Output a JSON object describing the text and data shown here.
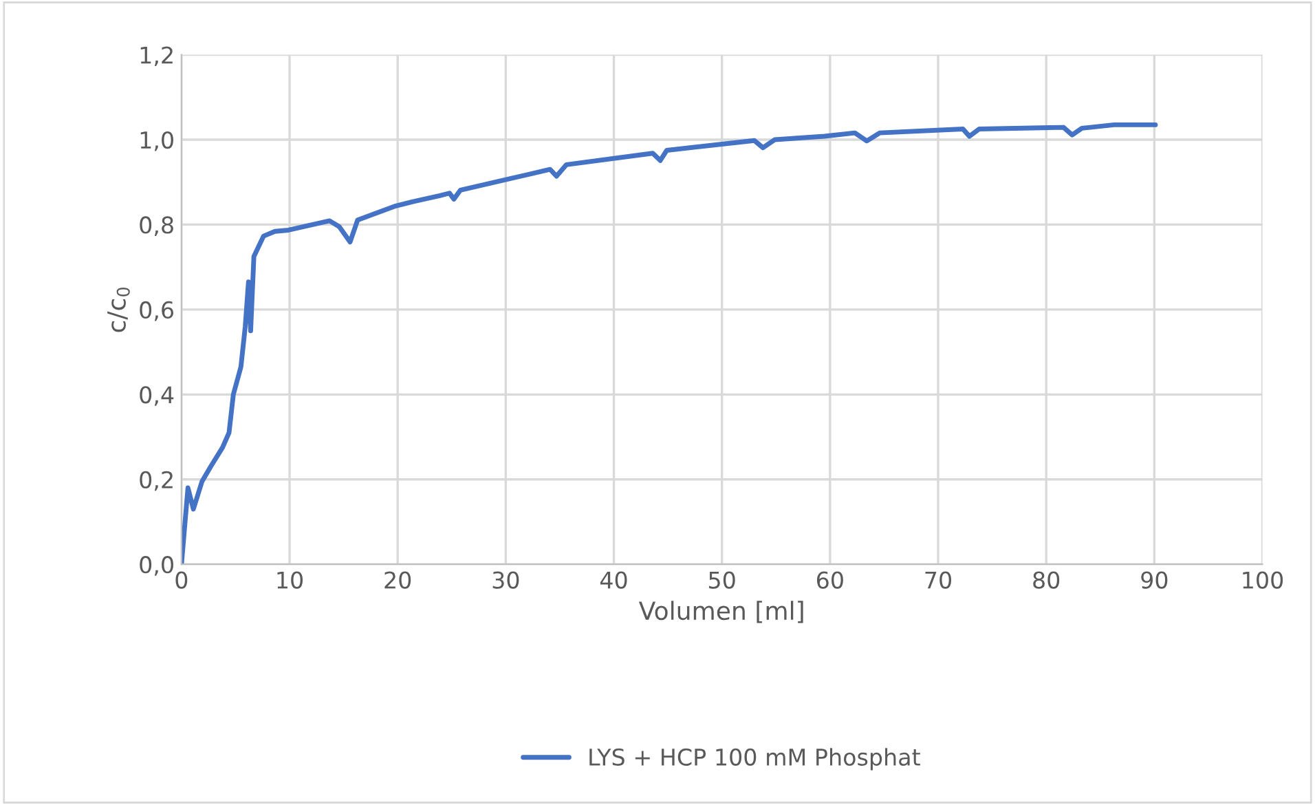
{
  "chart_data": {
    "type": "line",
    "xlabel": "Volumen [ml]",
    "ylabel": "c/c$_{0}$",
    "series": [
      {
        "name": "LYS + HCP 100 mM Phosphat",
        "color": "#4472c4",
        "x": [
          0,
          0.6,
          1.1,
          1.9,
          2.7,
          3.8,
          4.4,
          4.8,
          5.5,
          5.9,
          6.2,
          6.4,
          6.7,
          7.6,
          8.65,
          9.9,
          13.7,
          14.6,
          15.6,
          16.3,
          19.7,
          21.4,
          23.9,
          24.8,
          25.2,
          25.8,
          34.1,
          34.7,
          35.6,
          43.6,
          44.3,
          44.9,
          53.0,
          53.8,
          54.9,
          59.5,
          62.3,
          63.4,
          64.6,
          72.3,
          72.9,
          73.8,
          81.6,
          82.4,
          83.3,
          86.3,
          90.1
        ],
        "values": [
          0,
          0.18,
          0.13,
          0.195,
          0.23,
          0.275,
          0.31,
          0.4,
          0.465,
          0.56,
          0.665,
          0.55,
          0.725,
          0.773,
          0.784,
          0.787,
          0.809,
          0.795,
          0.759,
          0.811,
          0.843,
          0.854,
          0.868,
          0.874,
          0.86,
          0.881,
          0.93,
          0.914,
          0.941,
          0.968,
          0.951,
          0.975,
          0.998,
          0.981,
          1.0,
          1.008,
          1.016,
          0.997,
          1.016,
          1.025,
          1.008,
          1.025,
          1.029,
          1.011,
          1.027,
          1.035,
          1.035
        ]
      }
    ],
    "xlim": [
      0,
      100
    ],
    "xticks": [
      0,
      10,
      20,
      30,
      40,
      50,
      60,
      70,
      80,
      90,
      100
    ],
    "ylim": [
      0,
      1.2
    ],
    "yticks": [
      {
        "value": 0,
        "label": "0,0"
      },
      {
        "value": 0.2,
        "label": "0,2"
      },
      {
        "value": 0.4,
        "label": "0,4"
      },
      {
        "value": 0.6,
        "label": "0,6"
      },
      {
        "value": 0.8,
        "label": "0,8"
      },
      {
        "value": 1.0,
        "label": "1,0"
      },
      {
        "value": 1.2,
        "label": "1,2"
      }
    ],
    "grid": true,
    "legend": "bottom",
    "marker": "none",
    "line_style": "solid"
  }
}
